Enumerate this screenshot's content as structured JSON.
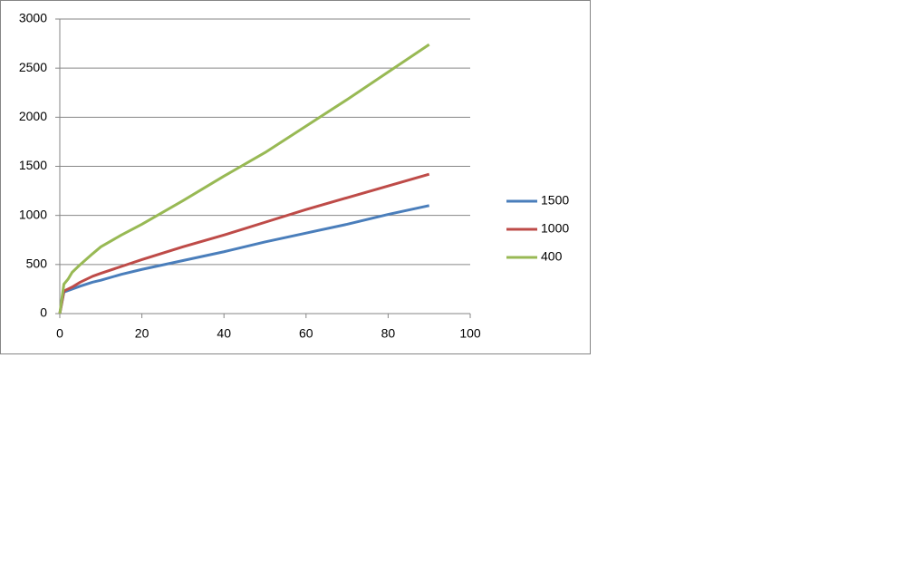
{
  "chart_data": {
    "type": "line",
    "x": [
      0,
      1,
      2,
      3,
      5,
      8,
      10,
      15,
      20,
      30,
      40,
      50,
      60,
      70,
      80,
      90
    ],
    "series": [
      {
        "name": "1500",
        "color": "#4a7ebb",
        "values": [
          0,
          220,
          235,
          250,
          280,
          320,
          340,
          400,
          450,
          540,
          630,
          730,
          820,
          910,
          1010,
          1100
        ]
      },
      {
        "name": "1000",
        "color": "#be4b48",
        "values": [
          0,
          230,
          250,
          270,
          320,
          380,
          410,
          480,
          550,
          680,
          800,
          930,
          1060,
          1180,
          1300,
          1420
        ]
      },
      {
        "name": "400",
        "color": "#98b954",
        "values": [
          0,
          300,
          350,
          420,
          500,
          610,
          680,
          800,
          910,
          1150,
          1400,
          1640,
          1910,
          2180,
          2460,
          2740
        ]
      }
    ],
    "xlim": [
      0,
      100
    ],
    "xticks": [
      0,
      20,
      40,
      60,
      80,
      100
    ],
    "ylim": [
      0,
      3000
    ],
    "yticks": [
      0,
      500,
      1000,
      1500,
      2000,
      2500,
      3000
    ],
    "grid": true,
    "legend": "right"
  }
}
